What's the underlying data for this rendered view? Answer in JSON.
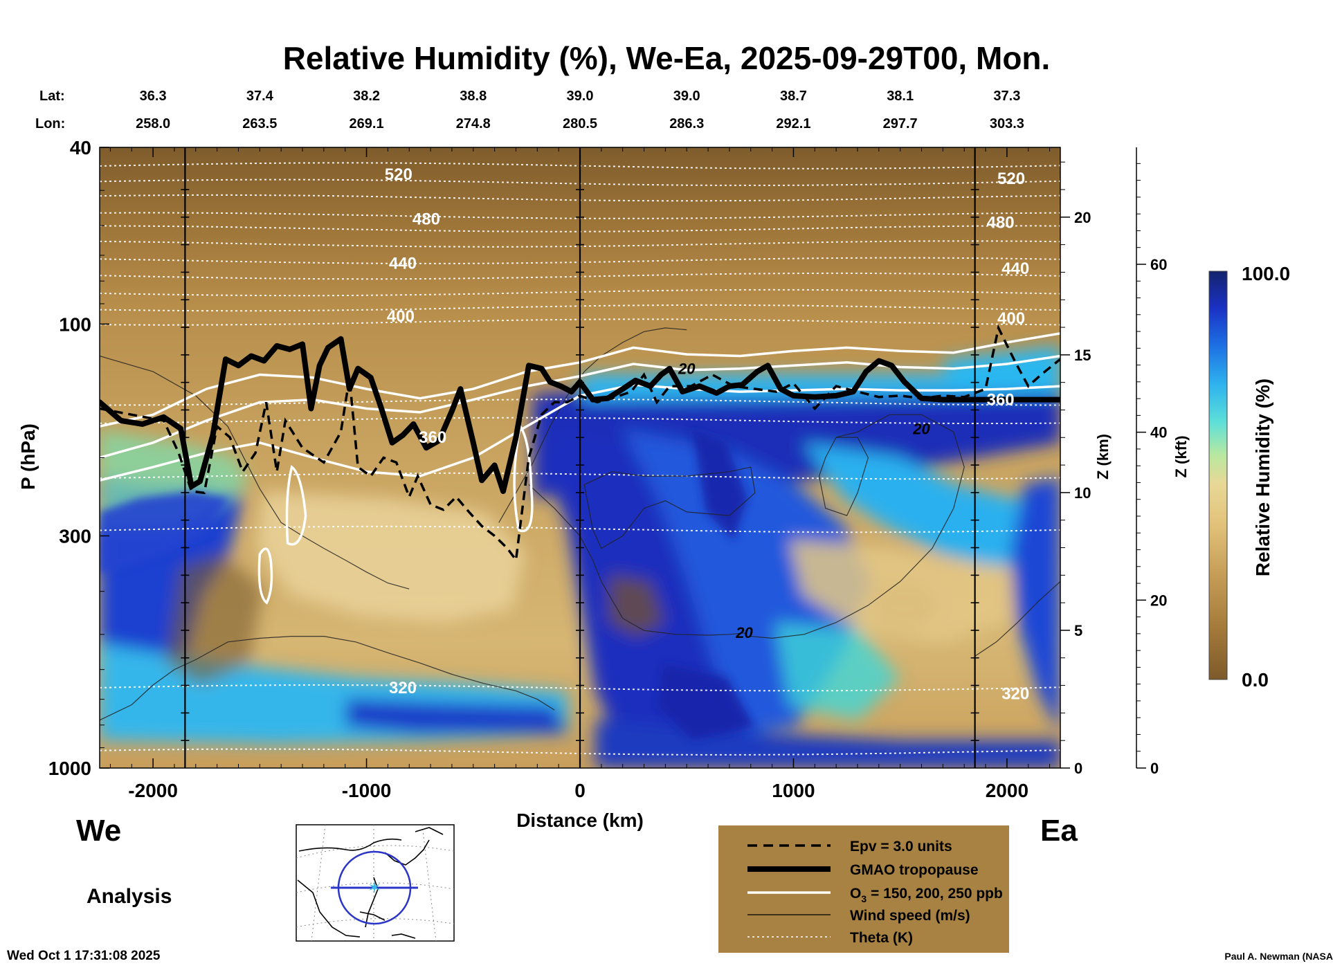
{
  "chart_data": {
    "type": "heatmap",
    "title": "Relative Humidity (%), We-Ea, 2025-09-29T00, Mon.",
    "xlabel": "Distance (km)",
    "ylabel": "P (hPa)",
    "z_km_label": "Z (km)",
    "z_kft_label": "Z (kft)",
    "colorbar_label": "Relative Humidity (%)",
    "colorbar_range": [
      0.0,
      100.0
    ],
    "colorbar_max_label": "100.0",
    "colorbar_min_label": "0.0",
    "x_range": [
      -2250,
      2250
    ],
    "x_ticks": [
      "-2000",
      "-1000",
      "0",
      "1000",
      "2000"
    ],
    "x_tick_values": [
      -2000,
      -1000,
      0,
      1000,
      2000
    ],
    "y_range_hpa": [
      40,
      1000
    ],
    "y_ticks": [
      "40",
      "100",
      "300",
      "1000"
    ],
    "y_tick_values": [
      40,
      100,
      300,
      1000
    ],
    "z_km_ticks": [
      "0",
      "5",
      "10",
      "15",
      "20"
    ],
    "z_km_values": [
      0,
      5,
      10,
      15,
      20
    ],
    "z_kft_ticks": [
      "0",
      "20",
      "40",
      "60"
    ],
    "z_kft_values": [
      0,
      20,
      40,
      60
    ],
    "lat_label": "Lat:",
    "lon_label": "Lon:",
    "lat": [
      "36.3",
      "37.4",
      "38.2",
      "38.8",
      "39.0",
      "39.0",
      "38.7",
      "38.1",
      "37.3"
    ],
    "lon": [
      "258.0",
      "263.5",
      "269.1",
      "274.8",
      "280.5",
      "286.3",
      "292.1",
      "297.7",
      "303.3"
    ],
    "lat_lon_distances_km": [
      -2000,
      -1500,
      -1000,
      -500,
      0,
      500,
      1000,
      1500,
      2000
    ],
    "vertical_markers_km": [
      -1850,
      0,
      1850
    ],
    "theta_labels": [
      {
        "text": "520",
        "x": -850,
        "p": 46
      },
      {
        "text": "480",
        "x": -720,
        "p": 58
      },
      {
        "text": "440",
        "x": -830,
        "p": 73
      },
      {
        "text": "400",
        "x": -840,
        "p": 96
      },
      {
        "text": "360",
        "x": -690,
        "p": 180
      },
      {
        "text": "320",
        "x": -830,
        "p": 660
      },
      {
        "text": "520",
        "x": 2020,
        "p": 47
      },
      {
        "text": "480",
        "x": 1970,
        "p": 59
      },
      {
        "text": "440",
        "x": 2040,
        "p": 75
      },
      {
        "text": "400",
        "x": 2020,
        "p": 97
      },
      {
        "text": "360",
        "x": 1970,
        "p": 148
      },
      {
        "text": "320",
        "x": 2040,
        "p": 680
      }
    ],
    "wind_labels": [
      {
        "text": "20",
        "x": 500,
        "p": 126
      },
      {
        "text": "20",
        "x": 1600,
        "p": 172
      },
      {
        "text": "20",
        "x": 770,
        "p": 495
      }
    ],
    "tropopause": [
      [
        -2250,
        150
      ],
      [
        -2150,
        165
      ],
      [
        -2050,
        168
      ],
      [
        -1950,
        162
      ],
      [
        -1870,
        172
      ],
      [
        -1820,
        232
      ],
      [
        -1780,
        226
      ],
      [
        -1720,
        178
      ],
      [
        -1660,
        120
      ],
      [
        -1600,
        124
      ],
      [
        -1540,
        118
      ],
      [
        -1480,
        121
      ],
      [
        -1420,
        112
      ],
      [
        -1360,
        114
      ],
      [
        -1300,
        111
      ],
      [
        -1260,
        155
      ],
      [
        -1220,
        124
      ],
      [
        -1180,
        113
      ],
      [
        -1120,
        108
      ],
      [
        -1080,
        140
      ],
      [
        -1040,
        126
      ],
      [
        -980,
        132
      ],
      [
        -930,
        155
      ],
      [
        -880,
        185
      ],
      [
        -830,
        178
      ],
      [
        -780,
        168
      ],
      [
        -720,
        190
      ],
      [
        -660,
        183
      ],
      [
        -600,
        157
      ],
      [
        -560,
        140
      ],
      [
        -500,
        185
      ],
      [
        -460,
        225
      ],
      [
        -400,
        208
      ],
      [
        -360,
        238
      ],
      [
        -300,
        180
      ],
      [
        -240,
        124
      ],
      [
        -180,
        126
      ],
      [
        -140,
        135
      ],
      [
        -90,
        138
      ],
      [
        -40,
        142
      ],
      [
        0,
        135
      ],
      [
        60,
        148
      ],
      [
        130,
        147
      ],
      [
        200,
        140
      ],
      [
        260,
        134
      ],
      [
        330,
        138
      ],
      [
        380,
        130
      ],
      [
        420,
        126
      ],
      [
        480,
        142
      ],
      [
        560,
        138
      ],
      [
        640,
        143
      ],
      [
        700,
        138
      ],
      [
        760,
        137
      ],
      [
        830,
        128
      ],
      [
        880,
        124
      ],
      [
        940,
        140
      ],
      [
        1000,
        145
      ],
      [
        1100,
        146
      ],
      [
        1200,
        145
      ],
      [
        1280,
        142
      ],
      [
        1340,
        128
      ],
      [
        1400,
        121
      ],
      [
        1460,
        124
      ],
      [
        1520,
        135
      ],
      [
        1600,
        147
      ],
      [
        1700,
        148
      ],
      [
        1850,
        148
      ],
      [
        2000,
        148
      ],
      [
        2250,
        148
      ]
    ],
    "epv_3": [
      [
        -2250,
        155
      ],
      [
        -2100,
        160
      ],
      [
        -1950,
        165
      ],
      [
        -1880,
        195
      ],
      [
        -1820,
        238
      ],
      [
        -1760,
        240
      ],
      [
        -1700,
        170
      ],
      [
        -1640,
        180
      ],
      [
        -1580,
        215
      ],
      [
        -1520,
        195
      ],
      [
        -1470,
        150
      ],
      [
        -1420,
        215
      ],
      [
        -1380,
        165
      ],
      [
        -1300,
        190
      ],
      [
        -1200,
        205
      ],
      [
        -1120,
        175
      ],
      [
        -1080,
        132
      ],
      [
        -1040,
        210
      ],
      [
        -980,
        220
      ],
      [
        -920,
        200
      ],
      [
        -860,
        205
      ],
      [
        -800,
        245
      ],
      [
        -760,
        220
      ],
      [
        -700,
        255
      ],
      [
        -640,
        262
      ],
      [
        -580,
        245
      ],
      [
        -520,
        265
      ],
      [
        -460,
        285
      ],
      [
        -400,
        300
      ],
      [
        -340,
        320
      ],
      [
        -300,
        340
      ],
      [
        -240,
        200
      ],
      [
        -180,
        160
      ],
      [
        -120,
        150
      ],
      [
        -60,
        150
      ],
      [
        0,
        145
      ],
      [
        80,
        150
      ],
      [
        150,
        147
      ],
      [
        240,
        142
      ],
      [
        300,
        130
      ],
      [
        360,
        150
      ],
      [
        420,
        138
      ],
      [
        520,
        138
      ],
      [
        620,
        130
      ],
      [
        720,
        138
      ],
      [
        820,
        140
      ],
      [
        920,
        142
      ],
      [
        1000,
        136
      ],
      [
        1100,
        155
      ],
      [
        1200,
        138
      ],
      [
        1300,
        142
      ],
      [
        1400,
        146
      ],
      [
        1500,
        145
      ],
      [
        1600,
        147
      ],
      [
        1700,
        145
      ],
      [
        1800,
        146
      ],
      [
        1900,
        140
      ],
      [
        1960,
        102
      ],
      [
        2040,
        122
      ],
      [
        2100,
        138
      ],
      [
        2160,
        130
      ],
      [
        2250,
        120
      ]
    ],
    "o3_curves": [
      [
        [
          -2250,
          170
        ],
        [
          -2000,
          160
        ],
        [
          -1750,
          140
        ],
        [
          -1500,
          130
        ],
        [
          -1250,
          132
        ],
        [
          -1000,
          140
        ],
        [
          -750,
          147
        ],
        [
          -500,
          140
        ],
        [
          -250,
          128
        ],
        [
          0,
          122
        ],
        [
          250,
          113
        ],
        [
          500,
          117
        ],
        [
          750,
          118
        ],
        [
          1000,
          115
        ],
        [
          1250,
          113
        ],
        [
          1500,
          115
        ],
        [
          1750,
          116
        ],
        [
          2000,
          110
        ],
        [
          2250,
          105
        ]
      ],
      [
        [
          -2250,
          200
        ],
        [
          -2000,
          185
        ],
        [
          -1750,
          165
        ],
        [
          -1500,
          150
        ],
        [
          -1250,
          148
        ],
        [
          -1000,
          155
        ],
        [
          -750,
          158
        ],
        [
          -500,
          148
        ],
        [
          -250,
          138
        ],
        [
          0,
          131
        ],
        [
          250,
          123
        ],
        [
          500,
          127
        ],
        [
          750,
          126
        ],
        [
          1000,
          124
        ],
        [
          1250,
          122
        ],
        [
          1500,
          125
        ],
        [
          1750,
          126
        ],
        [
          2000,
          123
        ],
        [
          2250,
          118
        ]
      ],
      [
        [
          -2250,
          225
        ],
        [
          -2000,
          210
        ],
        [
          -1750,
          195
        ],
        [
          -1500,
          185
        ],
        [
          -1250,
          200
        ],
        [
          -1000,
          215
        ],
        [
          -750,
          220
        ],
        [
          -500,
          200
        ],
        [
          -250,
          170
        ],
        [
          0,
          145
        ],
        [
          250,
          137
        ],
        [
          500,
          140
        ],
        [
          750,
          142
        ],
        [
          1000,
          141
        ],
        [
          1250,
          140
        ],
        [
          1500,
          141
        ],
        [
          1750,
          141
        ],
        [
          2000,
          140
        ],
        [
          2250,
          138
        ]
      ]
    ],
    "wind_20_curves": [
      [
        [
          -2250,
          118
        ],
        [
          -2000,
          128
        ],
        [
          -1800,
          145
        ],
        [
          -1650,
          170
        ],
        [
          -1500,
          235
        ],
        [
          -1400,
          280
        ],
        [
          -1300,
          300
        ],
        [
          -1200,
          320
        ],
        [
          -1100,
          340
        ],
        [
          -1000,
          362
        ],
        [
          -900,
          383
        ],
        [
          -800,
          395
        ]
      ],
      [
        [
          -2250,
          780
        ],
        [
          -2100,
          720
        ],
        [
          -2000,
          650
        ],
        [
          -1900,
          600
        ],
        [
          -1800,
          570
        ],
        [
          -1650,
          520
        ],
        [
          -1500,
          510
        ],
        [
          -1350,
          505
        ],
        [
          -1200,
          505
        ],
        [
          -1050,
          520
        ],
        [
          -900,
          550
        ],
        [
          -750,
          580
        ],
        [
          -600,
          615
        ],
        [
          -450,
          645
        ],
        [
          -300,
          670
        ],
        [
          -200,
          700
        ],
        [
          -120,
          740
        ]
      ],
      [
        [
          -380,
          280
        ],
        [
          -300,
          240
        ],
        [
          -220,
          205
        ],
        [
          -140,
          170
        ],
        [
          -60,
          145
        ],
        [
          20,
          128
        ],
        [
          100,
          118
        ],
        [
          200,
          110
        ],
        [
          300,
          104
        ],
        [
          400,
          102
        ],
        [
          500,
          103
        ]
      ],
      [
        [
          -240,
          230
        ],
        [
          -120,
          260
        ],
        [
          0,
          300
        ],
        [
          60,
          340
        ],
        [
          100,
          380
        ],
        [
          200,
          460
        ],
        [
          300,
          490
        ],
        [
          450,
          500
        ],
        [
          600,
          502
        ],
        [
          700,
          500
        ],
        [
          780,
          496
        ]
      ],
      [
        [
          20,
          230
        ],
        [
          150,
          215
        ],
        [
          300,
          220
        ],
        [
          500,
          220
        ],
        [
          700,
          215
        ],
        [
          800,
          210
        ],
        [
          820,
          240
        ],
        [
          700,
          270
        ],
        [
          500,
          265
        ],
        [
          400,
          250
        ],
        [
          300,
          260
        ],
        [
          200,
          300
        ],
        [
          100,
          320
        ],
        [
          60,
          290
        ],
        [
          20,
          230
        ]
      ],
      [
        [
          1200,
          180
        ],
        [
          1300,
          175
        ],
        [
          1450,
          160
        ],
        [
          1600,
          160
        ],
        [
          1750,
          175
        ],
        [
          1800,
          210
        ],
        [
          1750,
          260
        ],
        [
          1650,
          320
        ],
        [
          1500,
          380
        ],
        [
          1350,
          430
        ],
        [
          1200,
          470
        ],
        [
          1050,
          500
        ],
        [
          900,
          510
        ],
        [
          800,
          505
        ]
      ],
      [
        [
          1200,
          180
        ],
        [
          1150,
          200
        ],
        [
          1120,
          220
        ],
        [
          1150,
          260
        ],
        [
          1250,
          270
        ],
        [
          1300,
          240
        ],
        [
          1350,
          200
        ],
        [
          1300,
          180
        ],
        [
          1200,
          180
        ]
      ],
      [
        [
          1850,
          560
        ],
        [
          1950,
          520
        ],
        [
          2050,
          470
        ],
        [
          2150,
          420
        ],
        [
          2250,
          380
        ]
      ]
    ],
    "theta_levels_p": [
      44,
      48,
      52,
      57,
      61,
      66,
      72,
      78,
      85,
      92,
      99,
      150,
      165,
      220,
      290,
      660,
      920
    ]
  },
  "legend": {
    "epv": "Epv = 3.0 units",
    "tropopause": "GMAO tropopause",
    "o3_main": "O",
    "o3_sub": "3",
    "o3_rest": " = 150, 200, 250 ppb",
    "wind": "Wind speed (m/s)",
    "theta": "Theta (K)",
    "bg_color": "#a78243"
  },
  "labels": {
    "west": "We",
    "east": "Ea",
    "analysis": "Analysis",
    "timestamp": "Wed Oct  1 17:31:08 2025",
    "credit": "Paul A. Newman (NASA"
  },
  "map": {
    "track_color": "#2a35c8",
    "marker_color": "#38b6e8"
  }
}
